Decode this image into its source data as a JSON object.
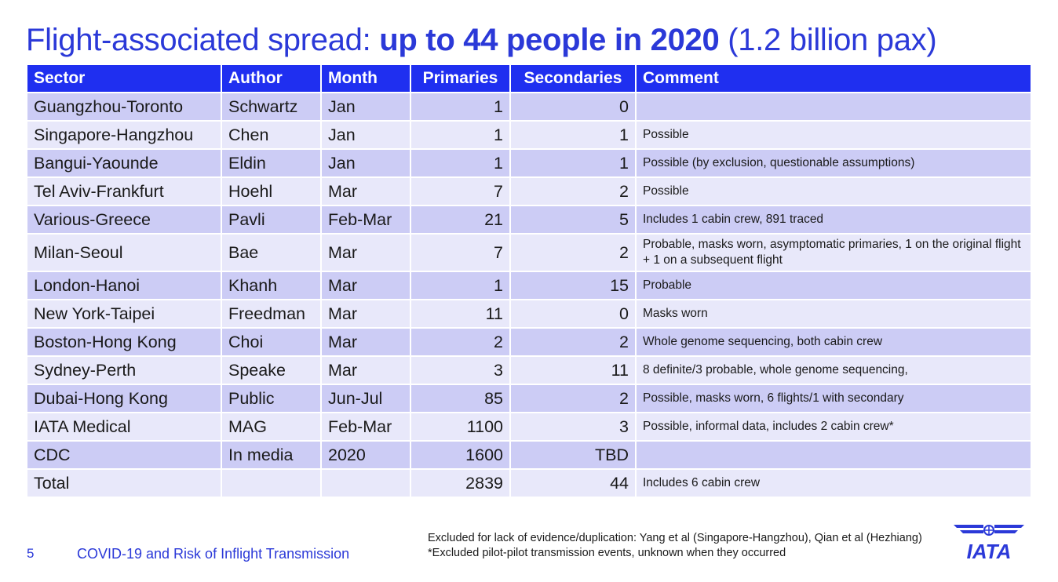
{
  "title": {
    "part1": "Flight-associated spread: ",
    "bold": "up to 44 people in 2020",
    "part2": " (1.2 billion pax)"
  },
  "table": {
    "headers": [
      "Sector",
      "Author",
      "Month",
      "Primaries",
      "Secondaries",
      "Comment"
    ],
    "rows": [
      {
        "sector": "Guangzhou-Toronto",
        "author": "Schwartz",
        "month": "Jan",
        "primaries": "1",
        "secondaries": "0",
        "comment": ""
      },
      {
        "sector": "Singapore-Hangzhou",
        "author": "Chen",
        "month": "Jan",
        "primaries": "1",
        "secondaries": "1",
        "comment": "Possible"
      },
      {
        "sector": "Bangui-Yaounde",
        "author": "Eldin",
        "month": "Jan",
        "primaries": "1",
        "secondaries": "1",
        "comment": "Possible (by exclusion, questionable assumptions)"
      },
      {
        "sector": "Tel Aviv-Frankfurt",
        "author": "Hoehl",
        "month": "Mar",
        "primaries": "7",
        "secondaries": "2",
        "comment": "Possible"
      },
      {
        "sector": "Various-Greece",
        "author": "Pavli",
        "month": "Feb-Mar",
        "primaries": "21",
        "secondaries": "5",
        "comment": "Includes 1 cabin crew, 891 traced"
      },
      {
        "sector": "Milan-Seoul",
        "author": "Bae",
        "month": "Mar",
        "primaries": "7",
        "secondaries": "2",
        "comment": "Probable, masks worn, asymptomatic primaries, 1 on the original flight + 1 on a subsequent flight"
      },
      {
        "sector": "London-Hanoi",
        "author": "Khanh",
        "month": "Mar",
        "primaries": "1",
        "secondaries": "15",
        "comment": "Probable"
      },
      {
        "sector": "New York-Taipei",
        "author": "Freedman",
        "month": "Mar",
        "primaries": "11",
        "secondaries": "0",
        "comment": "Masks worn"
      },
      {
        "sector": "Boston-Hong Kong",
        "author": "Choi",
        "month": "Mar",
        "primaries": "2",
        "secondaries": "2",
        "comment": "Whole genome sequencing, both cabin crew"
      },
      {
        "sector": "Sydney-Perth",
        "author": "Speake",
        "month": "Mar",
        "primaries": "3",
        "secondaries": "11",
        "comment": "8 definite/3 probable, whole genome sequencing,"
      },
      {
        "sector": "Dubai-Hong Kong",
        "author": "Public",
        "month": "Jun-Jul",
        "primaries": "85",
        "secondaries": "2",
        "comment": "Possible, masks worn, 6 flights/1 with secondary"
      },
      {
        "sector": "IATA Medical",
        "author": "MAG",
        "month": "Feb-Mar",
        "primaries": "1100",
        "secondaries": "3",
        "comment": "Possible, informal data, includes 2 cabin crew*"
      },
      {
        "sector": "CDC",
        "author": "In media",
        "month": "2020",
        "primaries": "1600",
        "secondaries": "TBD",
        "comment": ""
      },
      {
        "sector": "Total",
        "author": "",
        "month": "",
        "primaries": "2839",
        "secondaries": "44",
        "comment": "Includes 6 cabin crew"
      }
    ]
  },
  "footer": {
    "page_number": "5",
    "presentation_title": "COVID-19 and Risk of Inflight Transmission",
    "footnote": "Excluded for lack of evidence/duplication:  Yang et al (Singapore-Hangzhou), Qian et al (Hezhiang)  *Excluded pilot-pilot transmission events, unknown when they occurred"
  },
  "logo": {
    "text": "IATA",
    "color": "#2b39d8"
  },
  "colors": {
    "header_bg": "#1f2ff0",
    "row_odd": "#ccccf5",
    "row_even": "#e8e8fa",
    "title": "#2b39d8"
  }
}
